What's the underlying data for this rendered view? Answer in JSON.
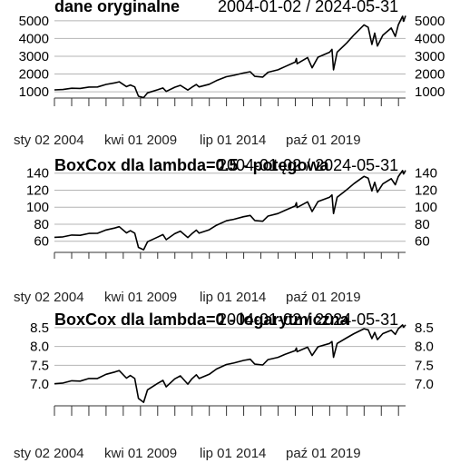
{
  "chart_data": [
    {
      "type": "line",
      "title": "dane oryginalne",
      "date_range_label": "2004-01-02 / 2024-05-31",
      "x_tick_labels": [
        "sty 02 2004",
        "kwi 01 2009",
        "lip 01 2014",
        "paź 01 2019"
      ],
      "y_tick_labels": [
        "1000",
        "2000",
        "3000",
        "4000",
        "5000"
      ],
      "y_ticks": [
        1000,
        2000,
        3000,
        4000,
        5000
      ],
      "ylim": [
        700,
        5350
      ],
      "xlim": [
        "2004-01-02",
        "2024-05-31"
      ],
      "grid": true,
      "series": [
        {
          "x": [
            "2004-01-02",
            "2004-07-01",
            "2005-01-03",
            "2005-07-01",
            "2006-01-03",
            "2006-07-03",
            "2007-01-03",
            "2007-07-02",
            "2007-10-09",
            "2008-03-10",
            "2008-06-02",
            "2008-09-02",
            "2008-11-20",
            "2009-03-09",
            "2009-06-01",
            "2009-12-31",
            "2010-04-23",
            "2010-07-02",
            "2010-12-31",
            "2011-04-29",
            "2011-10-03",
            "2011-12-30",
            "2012-04-02",
            "2012-06-01",
            "2012-12-31",
            "2013-06-03",
            "2013-12-31",
            "2014-06-02",
            "2014-12-31",
            "2015-05-21",
            "2015-08-25",
            "2016-02-11",
            "2016-06-01",
            "2016-12-30",
            "2017-06-01",
            "2017-12-29",
            "2018-01-26",
            "2018-02-08",
            "2018-09-20",
            "2018-12-24",
            "2019-04-30",
            "2019-12-31",
            "2020-02-19",
            "2020-03-23",
            "2020-06-08",
            "2020-12-31",
            "2021-06-01",
            "2021-12-31",
            "2022-03-29",
            "2022-06-16",
            "2022-08-16",
            "2022-10-12",
            "2023-02-02",
            "2023-07-31",
            "2023-10-27",
            "2023-12-29",
            "2024-03-28",
            "2024-04-19",
            "2024-05-31"
          ],
          "values": [
            1108,
            1129,
            1202,
            1191,
            1268,
            1270,
            1416,
            1503,
            1565,
            1293,
            1385,
            1277,
            752,
            677,
            942,
            1115,
            1217,
            1022,
            1258,
            1364,
            1099,
            1258,
            1408,
            1278,
            1426,
            1631,
            1848,
            1924,
            2059,
            2131,
            1868,
            1829,
            2099,
            2239,
            2423,
            2674,
            2873,
            2581,
            2930,
            2351,
            2946,
            3231,
            3386,
            2237,
            3232,
            3756,
            4204,
            4766,
            4631,
            3667,
            4305,
            3577,
            4180,
            4589,
            4117,
            4770,
            5254,
            4967,
            5277
          ]
        }
      ]
    },
    {
      "type": "line",
      "title": "BoxCox dla lambda=0.5 - potęgowa",
      "date_range_label": "2004-01-02 / 2024-05-31",
      "x_tick_labels": [
        "sty 02 2004",
        "kwi 01 2009",
        "lip 01 2014",
        "paź 01 2019"
      ],
      "y_tick_labels": [
        "60",
        "80",
        "100",
        "120",
        "140"
      ],
      "y_ticks": [
        60,
        80,
        100,
        120,
        140
      ],
      "ylim": [
        48,
        145
      ],
      "xlim": [
        "2004-01-02",
        "2024-05-31"
      ],
      "grid": true,
      "series": [
        {
          "x": [
            "2004-01-02",
            "2004-07-01",
            "2005-01-03",
            "2005-07-01",
            "2006-01-03",
            "2006-07-03",
            "2007-01-03",
            "2007-07-02",
            "2007-10-09",
            "2008-03-10",
            "2008-06-02",
            "2008-09-02",
            "2008-11-20",
            "2009-03-09",
            "2009-06-01",
            "2009-12-31",
            "2010-04-23",
            "2010-07-02",
            "2010-12-31",
            "2011-04-29",
            "2011-10-03",
            "2011-12-30",
            "2012-04-02",
            "2012-06-01",
            "2012-12-31",
            "2013-06-03",
            "2013-12-31",
            "2014-06-02",
            "2014-12-31",
            "2015-05-21",
            "2015-08-25",
            "2016-02-11",
            "2016-06-01",
            "2016-12-30",
            "2017-06-01",
            "2017-12-29",
            "2018-01-26",
            "2018-02-08",
            "2018-09-20",
            "2018-12-24",
            "2019-04-30",
            "2019-12-31",
            "2020-02-19",
            "2020-03-23",
            "2020-06-08",
            "2020-12-31",
            "2021-06-01",
            "2021-12-31",
            "2022-03-29",
            "2022-06-16",
            "2022-08-16",
            "2022-10-12",
            "2023-02-02",
            "2023-07-31",
            "2023-10-27",
            "2023-12-29",
            "2024-03-28",
            "2024-04-19",
            "2024-05-31"
          ],
          "values": [
            64.6,
            65.2,
            67.3,
            67.0,
            69.2,
            69.3,
            73.3,
            75.5,
            77.1,
            69.9,
            72.4,
            69.5,
            52.8,
            50.0,
            59.4,
            64.8,
            67.8,
            61.9,
            68.9,
            71.9,
            64.3,
            68.9,
            73.0,
            69.5,
            73.5,
            78.8,
            84.0,
            85.7,
            88.8,
            90.3,
            84.4,
            83.5,
            89.6,
            92.6,
            96.4,
            101.4,
            105.2,
            99.6,
            106.3,
            94.9,
            106.6,
            111.7,
            114.4,
            92.6,
            111.7,
            120.6,
            127.7,
            136.1,
            134.1,
            119.1,
            129.2,
            117.6,
            127.3,
            133.5,
            126.3,
            135.9,
            143.0,
            139.0,
            143.3
          ]
        }
      ]
    },
    {
      "type": "line",
      "title": "BoxCox dla lambda=0 - logarytmiczna",
      "date_range_label": "2004-01-02 / 2024-05-31",
      "x_tick_labels": [
        "sty 02 2004",
        "kwi 01 2009",
        "lip 01 2014",
        "paź 01 2019"
      ],
      "y_tick_labels": [
        "7.0",
        "7.5",
        "8.0",
        "8.5"
      ],
      "y_ticks": [
        7.0,
        7.5,
        8.0,
        8.5
      ],
      "ylim": [
        6.45,
        8.64
      ],
      "xlim": [
        "2004-01-02",
        "2024-05-31"
      ],
      "grid": true,
      "series": [
        {
          "x": [
            "2004-01-02",
            "2004-07-01",
            "2005-01-03",
            "2005-07-01",
            "2006-01-03",
            "2006-07-03",
            "2007-01-03",
            "2007-07-02",
            "2007-10-09",
            "2008-03-10",
            "2008-06-02",
            "2008-09-02",
            "2008-11-20",
            "2009-03-09",
            "2009-06-01",
            "2009-12-31",
            "2010-04-23",
            "2010-07-02",
            "2010-12-31",
            "2011-04-29",
            "2011-10-03",
            "2011-12-30",
            "2012-04-02",
            "2012-06-01",
            "2012-12-31",
            "2013-06-03",
            "2013-12-31",
            "2014-06-02",
            "2014-12-31",
            "2015-05-21",
            "2015-08-25",
            "2016-02-11",
            "2016-06-01",
            "2016-12-30",
            "2017-06-01",
            "2017-12-29",
            "2018-01-26",
            "2018-02-08",
            "2018-09-20",
            "2018-12-24",
            "2019-04-30",
            "2019-12-31",
            "2020-02-19",
            "2020-03-23",
            "2020-06-08",
            "2020-12-31",
            "2021-06-01",
            "2021-12-31",
            "2022-03-29",
            "2022-06-16",
            "2022-08-16",
            "2022-10-12",
            "2023-02-02",
            "2023-07-31",
            "2023-10-27",
            "2023-12-29",
            "2024-03-28",
            "2024-04-19",
            "2024-05-31"
          ],
          "values": [
            7.01,
            7.03,
            7.09,
            7.08,
            7.15,
            7.15,
            7.26,
            7.32,
            7.36,
            7.16,
            7.23,
            7.15,
            6.62,
            6.52,
            6.85,
            7.02,
            7.1,
            6.93,
            7.14,
            7.22,
            7.0,
            7.14,
            7.25,
            7.15,
            7.26,
            7.4,
            7.52,
            7.56,
            7.63,
            7.66,
            7.53,
            7.51,
            7.65,
            7.71,
            7.79,
            7.89,
            7.96,
            7.86,
            7.98,
            7.76,
            7.99,
            8.08,
            8.13,
            7.71,
            8.08,
            8.23,
            8.34,
            8.47,
            8.44,
            8.21,
            8.37,
            8.18,
            8.34,
            8.43,
            8.32,
            8.47,
            8.57,
            8.51,
            8.57
          ]
        }
      ]
    }
  ]
}
